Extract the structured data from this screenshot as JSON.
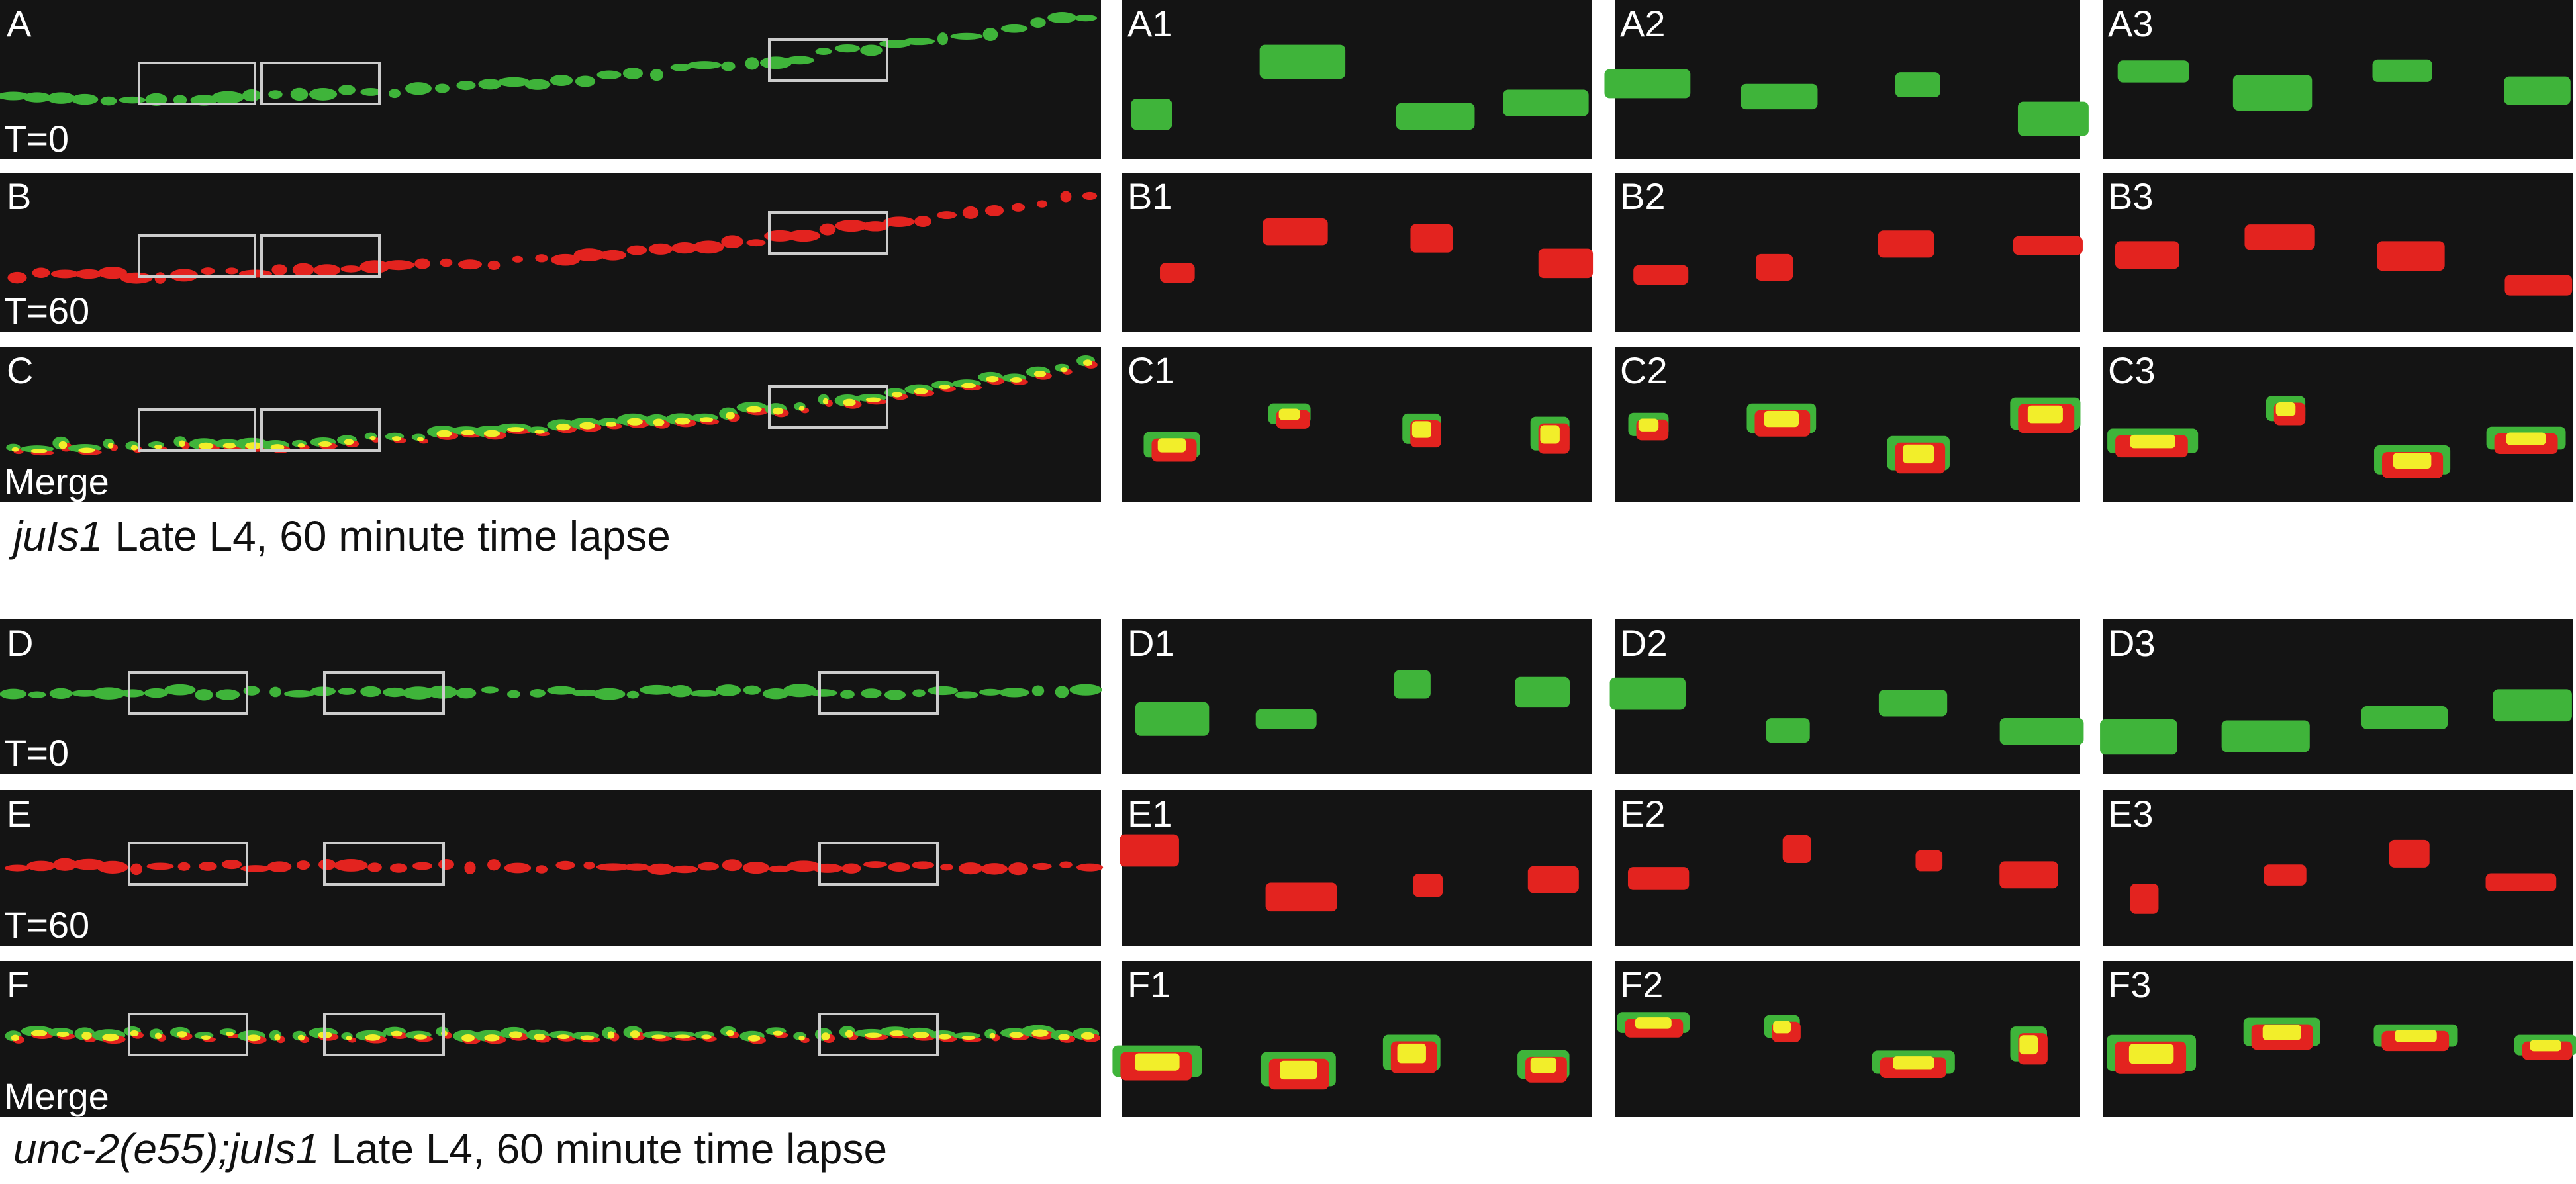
{
  "top": {
    "panels": [
      {
        "label": "A",
        "time": "T=0"
      },
      {
        "label": "B",
        "time": "T=60"
      },
      {
        "label": "C",
        "time": "Merge"
      }
    ],
    "insets": [
      [
        "A1",
        "A2",
        "A3"
      ],
      [
        "B1",
        "B2",
        "B3"
      ],
      [
        "C1",
        "C2",
        "C3"
      ]
    ],
    "caption_italic": "juIs1",
    "caption_rest": "Late L4, 60 minute time lapse"
  },
  "bottom": {
    "panels": [
      {
        "label": "D",
        "time": "T=0"
      },
      {
        "label": "E",
        "time": "T=60"
      },
      {
        "label": "F",
        "time": "Merge"
      }
    ],
    "insets": [
      [
        "D1",
        "D2",
        "D3"
      ],
      [
        "E1",
        "E2",
        "E3"
      ],
      [
        "F1",
        "F2",
        "F3"
      ]
    ],
    "caption_italic": "unc-2(e55);juIs1",
    "caption_rest": "Late L4, 60 minute time lapse"
  }
}
